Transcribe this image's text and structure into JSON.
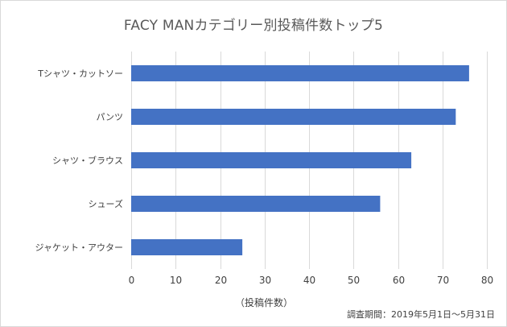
{
  "chart_data": {
    "type": "bar",
    "orientation": "horizontal",
    "title": "FACY MANカテゴリー別投稿件数トップ5",
    "categories": [
      "Tシャツ・カットソー",
      "パンツ",
      "シャツ・ブラウス",
      "シューズ",
      "ジャケット・アウター"
    ],
    "values": [
      76,
      73,
      63,
      56,
      25
    ],
    "xlabel": "（投稿件数）",
    "ylabel": "",
    "xlim": [
      0,
      80
    ],
    "xticks": [
      0,
      10,
      20,
      30,
      40,
      50,
      60,
      70,
      80
    ],
    "grid": true,
    "bar_color": "#4472C4",
    "grid_color": "#d9d9d9"
  },
  "note": "調査期間：2019年5月1日～5月31日"
}
